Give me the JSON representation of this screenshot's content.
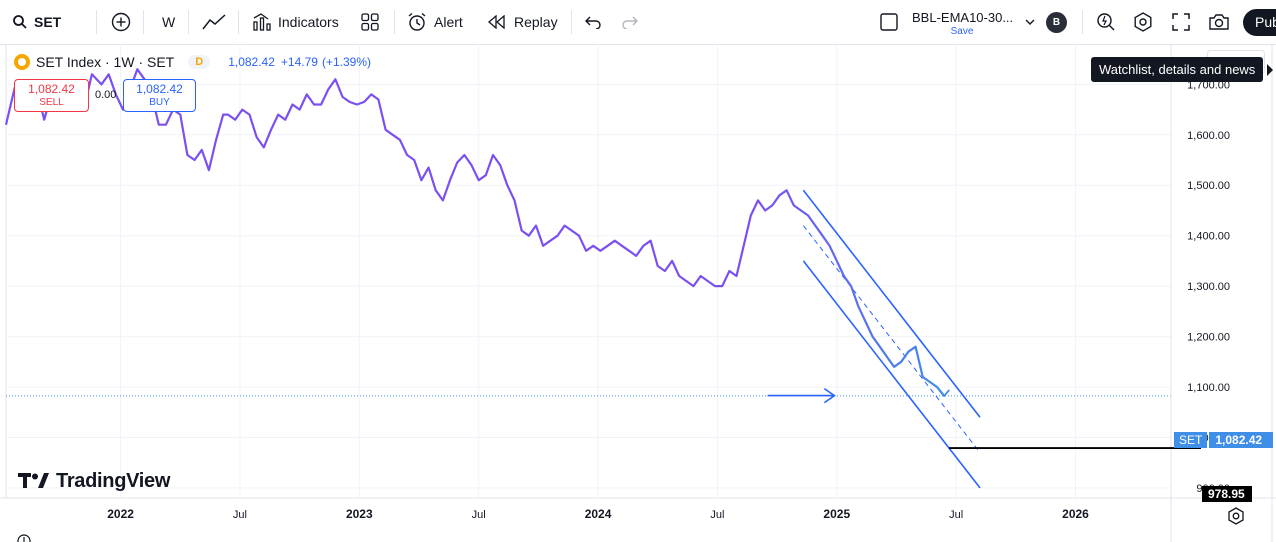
{
  "toolbar": {
    "symbol": "SET",
    "interval": "W",
    "indicators_label": "Indicators",
    "alert_label": "Alert",
    "replay_label": "Replay",
    "layout_name": "BBL-EMA10-30...",
    "save_label": "Save",
    "avatar_letter": "B",
    "publish_label": "Pub"
  },
  "legend": {
    "title": "SET Index · 1W · SET",
    "badge": "D",
    "last_price": "1,082.42",
    "change": "+14.79",
    "change_pct": "(+1.39%)"
  },
  "trade": {
    "sell_price": "1,082.42",
    "sell_label": "SELL",
    "spread": "0.00",
    "buy_price": "1,082.42",
    "buy_label": "BUY"
  },
  "tooltip": "Watchlist, details and news",
  "price_tag": {
    "symbol": "SET",
    "value": "1,082.42"
  },
  "target_tag": "978.95",
  "watermark": "TradingView",
  "colors": {
    "line": "#7b50f0",
    "line_end": "#3f8ee8",
    "channel": "#2962ff",
    "accent": "#2962ff",
    "sell": "#f23645"
  },
  "chart_data": {
    "type": "line",
    "ytick_labels": [
      "900.00",
      "1,000.00",
      "1,100.00",
      "1,200.00",
      "1,300.00",
      "1,400.00",
      "1,500.00",
      "1,600.00",
      "1,700.00"
    ],
    "yticks": [
      900,
      1000,
      1100,
      1200,
      1300,
      1400,
      1500,
      1600,
      1700
    ],
    "ylim": [
      880,
      1780
    ],
    "xlim": [
      2021.52,
      2026.4
    ],
    "xticks": [
      {
        "label": "2022",
        "x": 2022.0
      },
      {
        "label": "Jul",
        "x": 2022.5
      },
      {
        "label": "2023",
        "x": 2023.0
      },
      {
        "label": "Jul",
        "x": 2023.5
      },
      {
        "label": "2024",
        "x": 2024.0
      },
      {
        "label": "Jul",
        "x": 2024.5
      },
      {
        "label": "2025",
        "x": 2025.0
      },
      {
        "label": "Jul",
        "x": 2025.5
      },
      {
        "label": "2026",
        "x": 2026.0
      }
    ],
    "series": [
      {
        "x": [
          2021.52,
          2021.56,
          2021.58,
          2021.62,
          2021.65,
          2021.68,
          2021.71,
          2021.74,
          2021.77,
          2021.8,
          2021.83,
          2021.86,
          2021.88,
          2021.92,
          2021.95,
          2021.98,
          2022.01,
          2022.04,
          2022.07,
          2022.1,
          2022.13,
          2022.16,
          2022.19,
          2022.22,
          2022.25,
          2022.28,
          2022.31,
          2022.34,
          2022.37,
          2022.4,
          2022.43,
          2022.45,
          2022.48,
          2022.51,
          2022.54,
          2022.57,
          2022.6,
          2022.63,
          2022.66,
          2022.69,
          2022.72,
          2022.75,
          2022.78,
          2022.81,
          2022.84,
          2022.87,
          2022.9,
          2022.93,
          2022.96,
          2022.99,
          2023.02,
          2023.05,
          2023.08,
          2023.11,
          2023.14,
          2023.17,
          2023.2,
          2023.23,
          2023.26,
          2023.29,
          2023.32,
          2023.35,
          2023.38,
          2023.41,
          2023.44,
          2023.47,
          2023.5,
          2023.53,
          2023.56,
          2023.59,
          2023.62,
          2023.65,
          2023.68,
          2023.71,
          2023.74,
          2023.77,
          2023.8,
          2023.83,
          2023.86,
          2023.89,
          2023.92,
          2023.95,
          2023.98,
          2024.01,
          2024.04,
          2024.07,
          2024.1,
          2024.13,
          2024.16,
          2024.19,
          2024.22,
          2024.25,
          2024.28,
          2024.31,
          2024.34,
          2024.37,
          2024.4,
          2024.43,
          2024.46,
          2024.49,
          2024.52,
          2024.55,
          2024.58,
          2024.61,
          2024.64,
          2024.67,
          2024.7,
          2024.73,
          2024.76,
          2024.79,
          2024.82,
          2024.85,
          2024.88,
          2024.91,
          2024.94,
          2024.97,
          2025.0,
          2025.03,
          2025.06,
          2025.09,
          2025.12,
          2025.15,
          2025.18,
          2025.21,
          2025.24,
          2025.27,
          2025.3,
          2025.33,
          2025.36,
          2025.39,
          2025.42,
          2025.45
        ],
        "y": [
          1620,
          1700,
          1680,
          1650,
          1690,
          1630,
          1680,
          1690,
          1660,
          1650,
          1700,
          1680,
          1720,
          1700,
          1720,
          1680,
          1650,
          1690,
          1730,
          1710,
          1680,
          1620,
          1620,
          1650,
          1640,
          1560,
          1550,
          1570,
          1530,
          1590,
          1640,
          1640,
          1630,
          1650,
          1640,
          1595,
          1575,
          1610,
          1640,
          1630,
          1660,
          1650,
          1680,
          1660,
          1660,
          1690,
          1710,
          1675,
          1665,
          1660,
          1665,
          1680,
          1670,
          1610,
          1600,
          1590,
          1560,
          1550,
          1510,
          1535,
          1490,
          1470,
          1510,
          1545,
          1560,
          1540,
          1510,
          1520,
          1560,
          1540,
          1500,
          1470,
          1410,
          1400,
          1420,
          1380,
          1390,
          1400,
          1420,
          1410,
          1400,
          1370,
          1380,
          1370,
          1380,
          1390,
          1380,
          1370,
          1360,
          1380,
          1390,
          1340,
          1330,
          1350,
          1320,
          1310,
          1300,
          1320,
          1310,
          1300,
          1300,
          1330,
          1320,
          1380,
          1440,
          1470,
          1450,
          1460,
          1480,
          1490,
          1460,
          1450,
          1440,
          1420,
          1400,
          1380,
          1350,
          1320,
          1300,
          1260,
          1230,
          1200,
          1180,
          1160,
          1140,
          1150,
          1170,
          1180,
          1120,
          1110,
          1100,
          1082.42
        ]
      }
    ],
    "annotations": [
      {
        "type": "channel_upper",
        "x": [
          2024.86,
          2025.6
        ],
        "y": [
          1490,
          1040
        ]
      },
      {
        "type": "channel_lower",
        "x": [
          2024.86,
          2025.6
        ],
        "y": [
          1350,
          900
        ]
      },
      {
        "type": "channel_median",
        "x": [
          2024.86,
          2025.6
        ],
        "y": [
          1420,
          970
        ]
      },
      {
        "type": "arrow",
        "x": [
          2024.71,
          2024.99
        ],
        "y": [
          1083,
          1083
        ]
      },
      {
        "type": "target_line",
        "x": [
          2025.47,
          2025.84
        ],
        "y": [
          978.95,
          978.95
        ]
      }
    ]
  }
}
